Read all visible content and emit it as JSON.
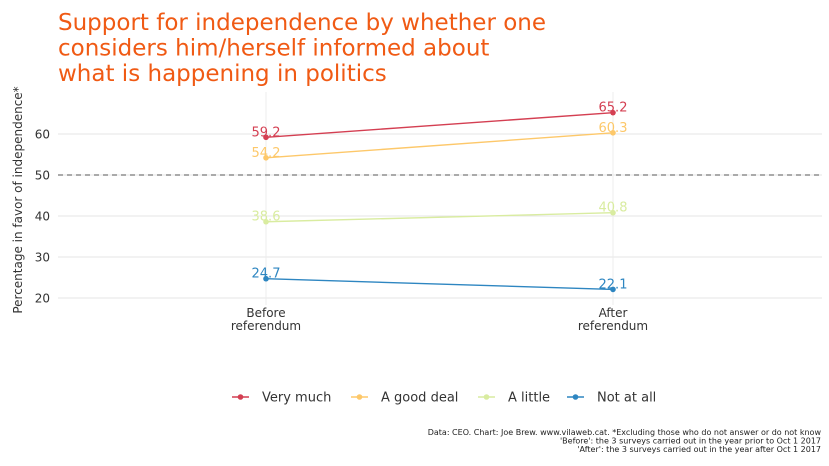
{
  "chart_data": {
    "type": "line",
    "title_lines": [
      "Support for independence by whether one",
      "considers him/herself informed about",
      "what is happening in politics"
    ],
    "ylabel": "Percentage in favor of independence*",
    "xlabel": "",
    "categories": [
      [
        "Before",
        "referendum"
      ],
      [
        "After",
        "referendum"
      ]
    ],
    "yticks": [
      20,
      30,
      40,
      50,
      60
    ],
    "ylim": [
      18,
      70
    ],
    "reference_line": 50,
    "series": [
      {
        "name": "Very much",
        "values": [
          59.2,
          65.2
        ],
        "labels": [
          "59.2",
          "65.2"
        ],
        "color": "#d43f52"
      },
      {
        "name": "A good deal",
        "values": [
          54.2,
          60.3
        ],
        "labels": [
          "54.2",
          "60.3"
        ],
        "color": "#fdc86a"
      },
      {
        "name": "A little",
        "values": [
          38.6,
          40.8
        ],
        "labels": [
          "38.6",
          "40.8"
        ],
        "color": "#d9eca0"
      },
      {
        "name": "Not at all",
        "values": [
          24.7,
          22.1
        ],
        "labels": [
          "24.7",
          "22.1"
        ],
        "color": "#2e86c1"
      }
    ],
    "legend_position": "bottom",
    "grid": true,
    "caption": [
      "Data: CEO. Chart: Joe Brew. www.vilaweb.cat. *Excluding those who do not answer or do not know",
      "'Before': the 3 surveys carried out in the year prior to Oct 1 2017",
      "'After': the 3 surveys carried out in the year after Oct 1 2017"
    ]
  }
}
